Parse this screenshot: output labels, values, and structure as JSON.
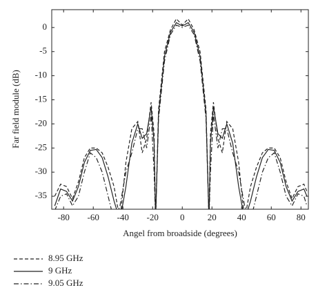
{
  "chart_data": {
    "type": "line",
    "xlabel": "Angel from broadside (degrees)",
    "ylabel": "Far field module (dB)",
    "x": [
      -86,
      -82,
      -78,
      -74,
      -70,
      -66,
      -62,
      -58,
      -54,
      -50,
      -46,
      -42,
      -38,
      -34,
      -30,
      -27,
      -24,
      -21,
      -19,
      -18,
      -16,
      -12,
      -8,
      -4,
      0,
      4,
      8,
      12,
      16,
      18,
      19,
      21,
      24,
      27,
      30,
      34,
      38,
      42,
      46,
      50,
      54,
      58,
      62,
      66,
      70,
      74,
      78,
      82,
      84
    ],
    "series": [
      {
        "name": "8.95 GHz",
        "color": "#222222",
        "linestyle": "dashed",
        "values": [
          -35,
          -32.5,
          -33,
          -35.5,
          -32,
          -27,
          -25,
          -25,
          -26,
          -29,
          -33,
          -40,
          -28,
          -21,
          -19.5,
          -26,
          -23,
          -15.5,
          -22,
          -40,
          -17,
          -5,
          -0.5,
          1.8,
          0.5,
          1.8,
          -0.5,
          -5,
          -17,
          -40,
          -22,
          -15.5,
          -23,
          -26,
          -19.5,
          -21,
          -28,
          -40,
          -33,
          -29,
          -26,
          -25,
          -25,
          -27,
          -32,
          -35.5,
          -33,
          -32.5,
          -34
        ]
      },
      {
        "name": "9 GHz",
        "color": "#222222",
        "linestyle": "solid",
        "values": [
          -37,
          -33.5,
          -34,
          -36,
          -33,
          -28,
          -25.5,
          -25.3,
          -27,
          -31,
          -36,
          -40,
          -33,
          -24,
          -20,
          -23,
          -22,
          -16.5,
          -24,
          -40,
          -18,
          -6,
          -1,
          1,
          0.3,
          1,
          -1,
          -6,
          -18,
          -40,
          -24,
          -16.5,
          -22,
          -23,
          -20,
          -24,
          -33,
          -40,
          -36,
          -31,
          -27,
          -25.3,
          -25.5,
          -28,
          -33,
          -36,
          -34,
          -33.5,
          -35
        ]
      },
      {
        "name": "9.05 GHz",
        "color": "#222222",
        "linestyle": "dashdot",
        "values": [
          -38,
          -35,
          -34.5,
          -37,
          -35,
          -30,
          -26,
          -27,
          -30,
          -35,
          -40,
          -37,
          -30,
          -26,
          -21,
          -21,
          -25,
          -18,
          -30,
          -40,
          -19,
          -7,
          -1.5,
          0.5,
          0,
          0.5,
          -1.5,
          -7,
          -19,
          -40,
          -30,
          -18,
          -25,
          -21,
          -21,
          -26,
          -30,
          -37,
          -40,
          -35,
          -30,
          -27,
          -26,
          -30,
          -35,
          -37,
          -34.5,
          -35,
          -37
        ]
      }
    ],
    "xlim": [
      -88,
      85
    ],
    "ylim": [
      -37.7,
      3.7
    ],
    "xticks": [
      -80,
      -60,
      -40,
      -20,
      0,
      20,
      40,
      60,
      80
    ],
    "yticks": [
      -35,
      -30,
      -25,
      -20,
      -15,
      -10,
      -5,
      0
    ],
    "grid": false,
    "legend": "below-left"
  }
}
